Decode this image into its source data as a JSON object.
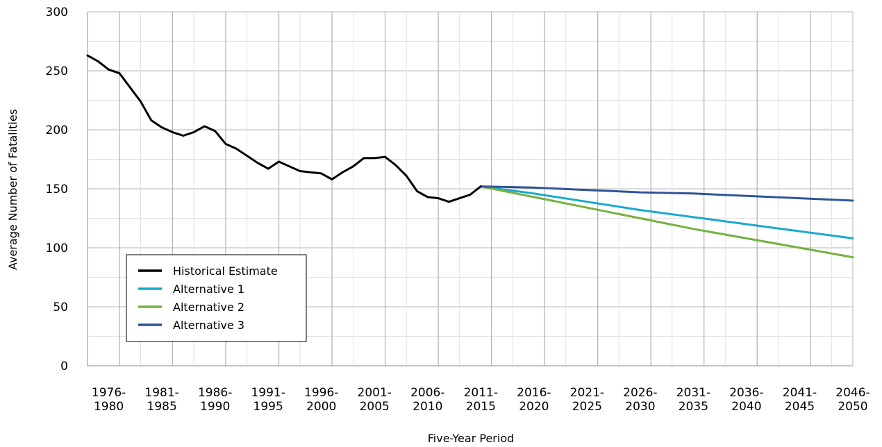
{
  "chart_data": {
    "type": "line",
    "title": "",
    "xlabel": "Five-Year Period",
    "ylabel": "Average Number of Fatalities",
    "ylim": [
      0,
      300
    ],
    "yticks": [
      0,
      50,
      100,
      150,
      200,
      250,
      300
    ],
    "categories": [
      [
        "1976-",
        "1980"
      ],
      [
        "1981-",
        "1985"
      ],
      [
        "1986-",
        "1990"
      ],
      [
        "1991-",
        "1995"
      ],
      [
        "1996-",
        "2000"
      ],
      [
        "2001-",
        "2005"
      ],
      [
        "2006-",
        "2010"
      ],
      [
        "2011-",
        "2015"
      ],
      [
        "2016-",
        "2020"
      ],
      [
        "2021-",
        "2025"
      ],
      [
        "2026-",
        "2030"
      ],
      [
        "2031-",
        "2035"
      ],
      [
        "2036-",
        "2040"
      ],
      [
        "2041-",
        "2045"
      ],
      [
        "2046-",
        "2050"
      ]
    ],
    "x_start_year": 1976,
    "x_end_year": 2048,
    "grid": true,
    "legend": "bottom-left",
    "series": [
      {
        "name": "Historical Estimate",
        "color": "#000000",
        "x": [
          1976,
          1977,
          1978,
          1979,
          1980,
          1981,
          1982,
          1983,
          1984,
          1985,
          1986,
          1987,
          1988,
          1989,
          1990,
          1991,
          1992,
          1993,
          1994,
          1995,
          1996,
          1997,
          1998,
          1999,
          2000,
          2001,
          2002,
          2003,
          2004,
          2005,
          2006,
          2007,
          2008,
          2009,
          2010,
          2011,
          2012,
          2013
        ],
        "values": [
          263,
          258,
          251,
          248,
          236,
          224,
          208,
          202,
          198,
          195,
          198,
          203,
          199,
          188,
          184,
          178,
          172,
          167,
          173,
          169,
          165,
          164,
          163,
          158,
          164,
          169,
          176,
          176,
          177,
          170,
          161,
          148,
          143,
          142,
          139,
          142,
          145,
          152
        ]
      },
      {
        "name": "Alternative 1",
        "color": "#17a9cf",
        "x": [
          2013,
          2018,
          2023,
          2028,
          2033,
          2038,
          2043,
          2048
        ],
        "values": [
          152,
          146,
          139,
          132,
          126,
          120,
          114,
          108
        ]
      },
      {
        "name": "Alternative 2",
        "color": "#76b041",
        "x": [
          2013,
          2018,
          2023,
          2028,
          2033,
          2038,
          2043,
          2048
        ],
        "values": [
          152,
          143,
          134,
          125,
          116,
          108,
          100,
          92
        ]
      },
      {
        "name": "Alternative 3",
        "color": "#2e5597",
        "x": [
          2013,
          2018,
          2023,
          2028,
          2033,
          2038,
          2043,
          2048
        ],
        "values": [
          152,
          151,
          149,
          147,
          146,
          144,
          142,
          140
        ]
      }
    ]
  }
}
